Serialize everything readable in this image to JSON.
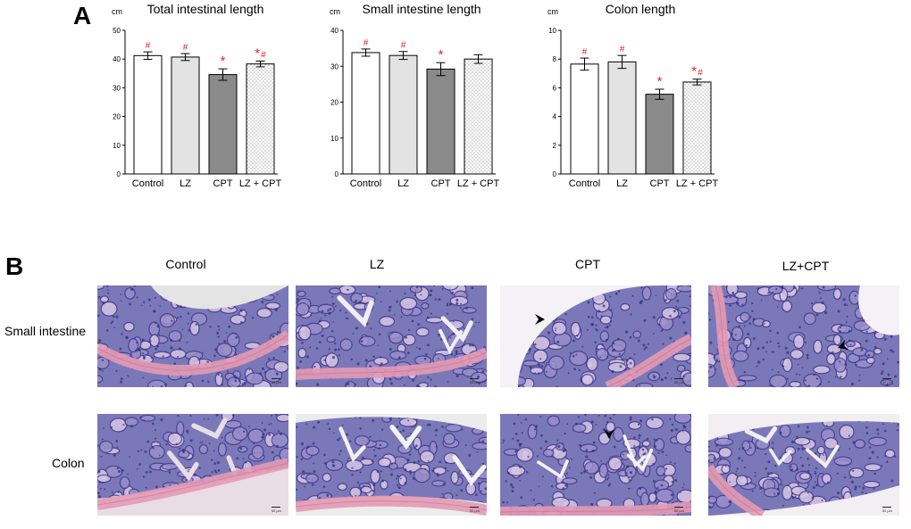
{
  "panelA": {
    "label": "A"
  },
  "panelB": {
    "label": "B"
  },
  "colors": {
    "significance": "#e0242a",
    "bar_outline": "#000000"
  },
  "chart_data": [
    {
      "type": "bar",
      "title": "Total intestinal length",
      "ylabel": "cm",
      "ylim": [
        0,
        50
      ],
      "yticks": [
        0,
        10,
        20,
        30,
        40,
        50
      ],
      "categories": [
        "Control",
        "LZ",
        "CPT",
        "LZ + CPT"
      ],
      "values": [
        41.2,
        40.7,
        34.6,
        38.3
      ],
      "errors": [
        1.3,
        1.2,
        2.0,
        1.0
      ],
      "fills": [
        "#ffffff",
        "#e3e3e3",
        "#8a8a8a",
        "dots"
      ],
      "marks": [
        [
          "#"
        ],
        [
          "#"
        ],
        [
          "*"
        ],
        [
          "*",
          "#"
        ]
      ]
    },
    {
      "type": "bar",
      "title": "Small intestine length",
      "ylabel": "cm",
      "ylim": [
        0,
        40
      ],
      "yticks": [
        0,
        10,
        20,
        30,
        40
      ],
      "categories": [
        "Control",
        "LZ",
        "CPT",
        "LZ + CPT"
      ],
      "values": [
        33.8,
        33.0,
        29.2,
        32.0
      ],
      "errors": [
        1.0,
        1.1,
        1.8,
        1.2
      ],
      "fills": [
        "#ffffff",
        "#e3e3e3",
        "#8a8a8a",
        "dots"
      ],
      "marks": [
        [
          "#"
        ],
        [
          "#"
        ],
        [
          "*"
        ],
        []
      ]
    },
    {
      "type": "bar",
      "title": "Colon length",
      "ylabel": "cm",
      "ylim": [
        0,
        10
      ],
      "yticks": [
        0,
        2,
        4,
        6,
        8,
        10
      ],
      "categories": [
        "Control",
        "LZ",
        "CPT",
        "LZ + CPT"
      ],
      "values": [
        7.65,
        7.8,
        5.55,
        6.4
      ],
      "errors": [
        0.42,
        0.45,
        0.35,
        0.2
      ],
      "fills": [
        "#ffffff",
        "#e3e3e3",
        "#8a8a8a",
        "dots"
      ],
      "marks": [
        [
          "#"
        ],
        [
          "#"
        ],
        [
          "*"
        ],
        [
          "*",
          "#"
        ]
      ]
    }
  ],
  "histology": {
    "columns": [
      "Control",
      "LZ",
      "CPT",
      "LZ+CPT"
    ],
    "rows": [
      "Small intestine",
      "Colon"
    ],
    "scale_bar_text": "50 μm",
    "arrowhead_icon": "arrowhead-icon"
  }
}
